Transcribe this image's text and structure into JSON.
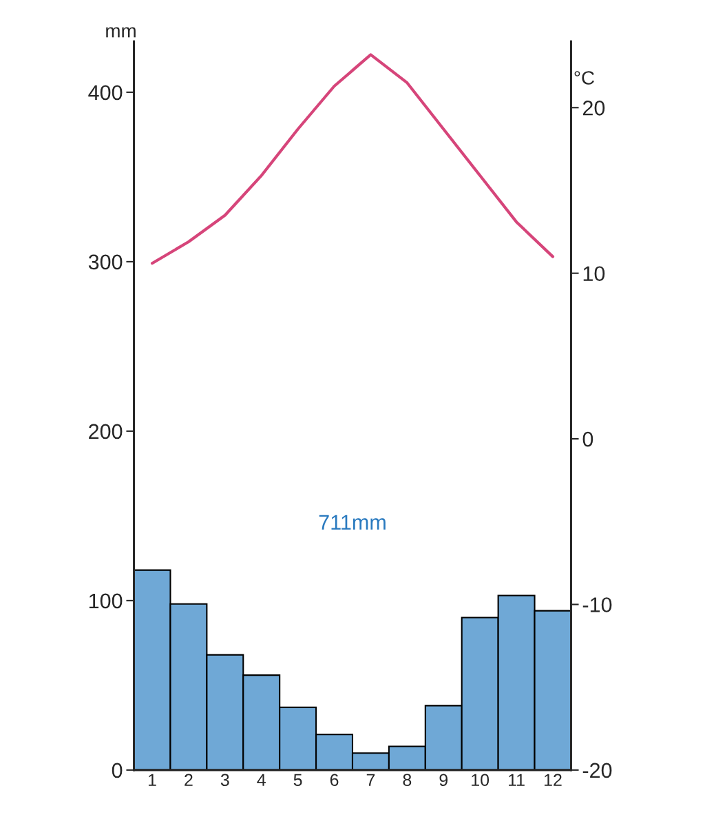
{
  "chart_data": {
    "type": "bar",
    "categories": [
      "1",
      "2",
      "3",
      "4",
      "5",
      "6",
      "7",
      "8",
      "9",
      "10",
      "11",
      "12"
    ],
    "ylabel": "mm",
    "y2label": "°C",
    "series": [
      {
        "color": "#6fa8d6",
        "values": [
          118,
          98,
          68,
          56,
          37,
          21,
          10,
          14,
          38,
          90,
          103,
          94
        ]
      },
      {
        "type": "line",
        "axis": "y2",
        "color": "#d6457a",
        "values": [
          10.6,
          11.9,
          13.5,
          15.9,
          18.7,
          21.3,
          23.2,
          21.5,
          18.7,
          15.9,
          13.1,
          11.0
        ]
      }
    ],
    "ylim": [
      0,
      430
    ],
    "yticks": [
      0,
      100,
      200,
      300,
      400
    ],
    "y2lim": [
      -20,
      24
    ],
    "y2ticks": [
      -20,
      -10,
      0,
      10,
      20
    ],
    "annotations": [
      "711mm"
    ],
    "grid": false,
    "legend": false
  }
}
